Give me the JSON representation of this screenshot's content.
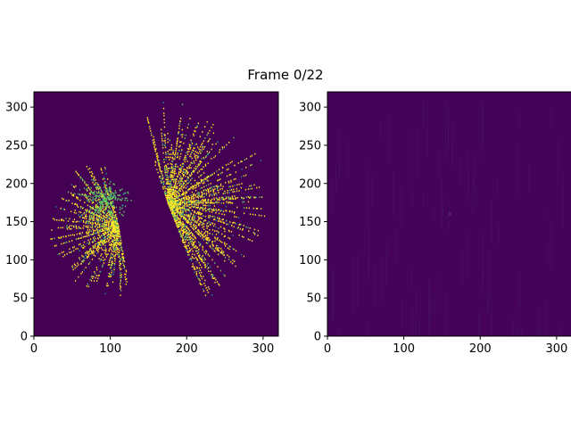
{
  "figure": {
    "title": "Frame 0/22"
  },
  "colors": {
    "background_low": "#440154",
    "mid_teal": "#21918c",
    "mid_green": "#5ec962",
    "high_yellow": "#fde725",
    "axis": "#000000"
  },
  "chart_data": [
    {
      "type": "heatmap",
      "panel": "left",
      "xlim": [
        0,
        320
      ],
      "ylim": [
        0,
        320
      ],
      "xticks": [
        0,
        100,
        200,
        300
      ],
      "yticks": [
        0,
        50,
        100,
        150,
        200,
        250,
        300
      ],
      "xtick_labels": [
        "0",
        "100",
        "200",
        "300"
      ],
      "ytick_labels": [
        "0",
        "50",
        "100",
        "150",
        "200",
        "250",
        "300"
      ],
      "grid": false,
      "pattern": "radial-starburst",
      "clusters": [
        {
          "center": [
            110,
            145
          ],
          "max_radius": 95,
          "ray_count": 120,
          "angle_range_deg": [
            100,
            280
          ],
          "color": "high_yellow"
        },
        {
          "center": [
            175,
            175
          ],
          "max_radius": 140,
          "ray_count": 140,
          "angle_range_deg": [
            -70,
            110
          ],
          "color": "high_yellow"
        },
        {
          "center": [
            90,
            180
          ],
          "max_radius": 45,
          "ray_count": 60,
          "angle_range_deg": [
            0,
            360
          ],
          "color": "mid_green"
        }
      ]
    },
    {
      "type": "heatmap",
      "panel": "right",
      "xlim": [
        0,
        320
      ],
      "ylim": [
        0,
        320
      ],
      "xticks": [
        0,
        100,
        200,
        300
      ],
      "yticks": [
        0,
        50,
        100,
        150,
        200,
        250,
        300
      ],
      "xtick_labels": [
        "0",
        "100",
        "200",
        "300"
      ],
      "ytick_labels": [
        "0",
        "50",
        "100",
        "150",
        "200",
        "250",
        "300"
      ],
      "grid": false,
      "pattern": "near-uniform-low",
      "highlight_point": [
        160,
        160
      ]
    }
  ]
}
